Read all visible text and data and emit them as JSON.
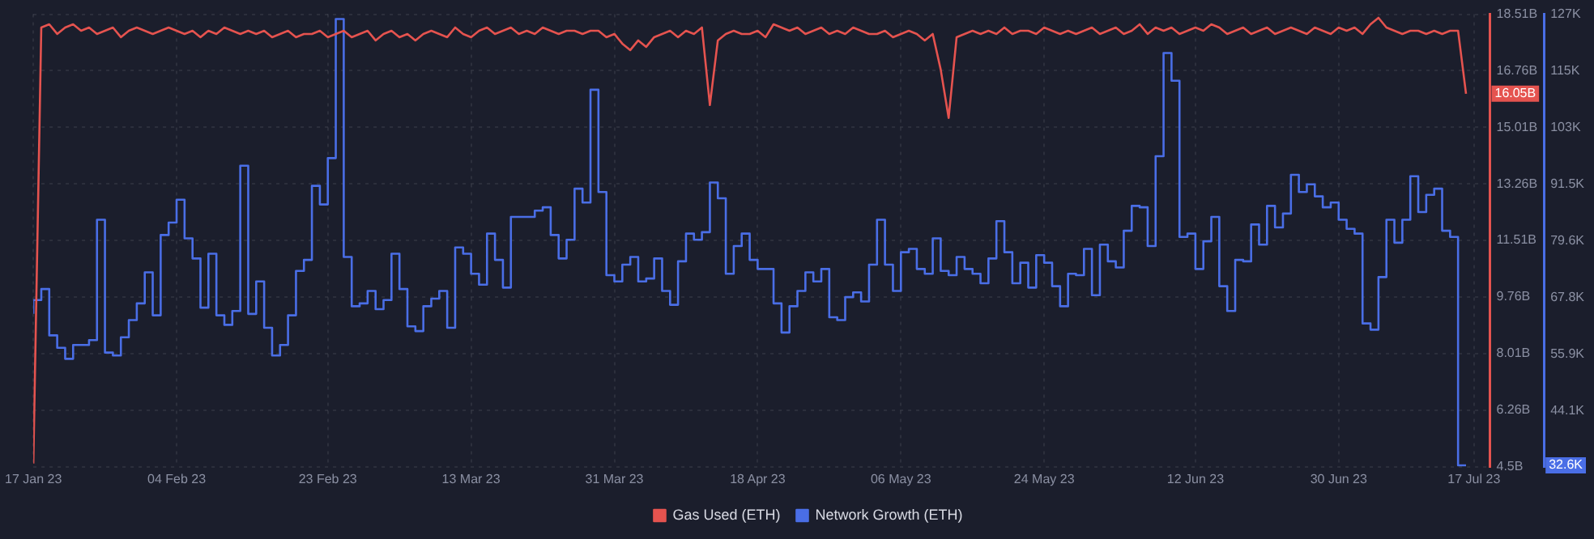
{
  "chart_data": {
    "type": "line",
    "x": [
      "2023-01-17",
      "2023-01-18",
      "2023-01-19",
      "2023-01-20",
      "2023-01-21",
      "2023-01-22",
      "2023-01-23",
      "2023-01-24",
      "2023-01-25",
      "2023-01-26",
      "2023-01-27",
      "2023-01-28",
      "2023-01-29",
      "2023-01-30",
      "2023-01-31",
      "2023-02-01",
      "2023-02-02",
      "2023-02-03",
      "2023-02-04",
      "2023-02-05",
      "2023-02-06",
      "2023-02-07",
      "2023-02-08",
      "2023-02-09",
      "2023-02-10",
      "2023-02-11",
      "2023-02-12",
      "2023-02-13",
      "2023-02-14",
      "2023-02-15",
      "2023-02-16",
      "2023-02-17",
      "2023-02-18",
      "2023-02-19",
      "2023-02-20",
      "2023-02-21",
      "2023-02-22",
      "2023-02-23",
      "2023-02-24",
      "2023-02-25",
      "2023-02-26",
      "2023-02-27",
      "2023-02-28",
      "2023-03-01",
      "2023-03-02",
      "2023-03-03",
      "2023-03-04",
      "2023-03-05",
      "2023-03-06",
      "2023-03-07",
      "2023-03-08",
      "2023-03-09",
      "2023-03-10",
      "2023-03-11",
      "2023-03-12",
      "2023-03-13",
      "2023-03-14",
      "2023-03-15",
      "2023-03-16",
      "2023-03-17",
      "2023-03-18",
      "2023-03-19",
      "2023-03-20",
      "2023-03-21",
      "2023-03-22",
      "2023-03-23",
      "2023-03-24",
      "2023-03-25",
      "2023-03-26",
      "2023-03-27",
      "2023-03-28",
      "2023-03-29",
      "2023-03-30",
      "2023-03-31",
      "2023-04-01",
      "2023-04-02",
      "2023-04-03",
      "2023-04-04",
      "2023-04-05",
      "2023-04-06",
      "2023-04-07",
      "2023-04-08",
      "2023-04-09",
      "2023-04-10",
      "2023-04-11",
      "2023-04-12",
      "2023-04-13",
      "2023-04-14",
      "2023-04-15",
      "2023-04-16",
      "2023-04-17",
      "2023-04-18",
      "2023-04-19",
      "2023-04-20",
      "2023-04-21",
      "2023-04-22",
      "2023-04-23",
      "2023-04-24",
      "2023-04-25",
      "2023-04-26",
      "2023-04-27",
      "2023-04-28",
      "2023-04-29",
      "2023-04-30",
      "2023-05-01",
      "2023-05-02",
      "2023-05-03",
      "2023-05-04",
      "2023-05-05",
      "2023-05-06",
      "2023-05-07",
      "2023-05-08",
      "2023-05-09",
      "2023-05-10",
      "2023-05-11",
      "2023-05-12",
      "2023-05-13",
      "2023-05-14",
      "2023-05-15",
      "2023-05-16",
      "2023-05-17",
      "2023-05-18",
      "2023-05-19",
      "2023-05-20",
      "2023-05-21",
      "2023-05-22",
      "2023-05-23",
      "2023-05-24",
      "2023-05-25",
      "2023-05-26",
      "2023-05-27",
      "2023-05-28",
      "2023-05-29",
      "2023-05-30",
      "2023-05-31",
      "2023-06-01",
      "2023-06-02",
      "2023-06-03",
      "2023-06-04",
      "2023-06-05",
      "2023-06-06",
      "2023-06-07",
      "2023-06-08",
      "2023-06-09",
      "2023-06-10",
      "2023-06-11",
      "2023-06-12",
      "2023-06-13",
      "2023-06-14",
      "2023-06-15",
      "2023-06-16",
      "2023-06-17",
      "2023-06-18",
      "2023-06-19",
      "2023-06-20",
      "2023-06-21",
      "2023-06-22",
      "2023-06-23",
      "2023-06-24",
      "2023-06-25",
      "2023-06-26",
      "2023-06-27",
      "2023-06-28",
      "2023-06-29",
      "2023-06-30",
      "2023-07-01",
      "2023-07-02",
      "2023-07-03",
      "2023-07-04",
      "2023-07-05",
      "2023-07-06",
      "2023-07-07",
      "2023-07-08",
      "2023-07-09",
      "2023-07-10",
      "2023-07-11",
      "2023-07-12",
      "2023-07-13",
      "2023-07-14",
      "2023-07-15",
      "2023-07-16"
    ],
    "series": [
      {
        "name": "Gas Used (ETH)",
        "color": "#e5534f",
        "axis": "y",
        "values": [
          4.6,
          18.1,
          18.2,
          17.9,
          18.1,
          18.2,
          18.0,
          18.1,
          17.9,
          18.0,
          18.1,
          17.8,
          18.0,
          18.1,
          18.0,
          17.9,
          18.0,
          18.1,
          18.0,
          17.9,
          18.0,
          17.8,
          18.0,
          17.9,
          18.1,
          18.0,
          17.9,
          18.0,
          17.9,
          18.0,
          17.8,
          17.9,
          18.0,
          17.8,
          17.9,
          17.9,
          18.0,
          17.8,
          17.9,
          18.0,
          17.8,
          17.9,
          18.0,
          17.7,
          17.9,
          18.0,
          17.8,
          17.9,
          17.7,
          17.9,
          18.0,
          17.9,
          17.8,
          18.1,
          17.9,
          17.8,
          18.0,
          18.1,
          17.9,
          18.0,
          18.1,
          17.9,
          18.0,
          17.9,
          18.1,
          18.0,
          17.9,
          18.0,
          18.0,
          17.9,
          18.0,
          18.0,
          17.8,
          17.9,
          17.6,
          17.4,
          17.7,
          17.5,
          17.8,
          17.9,
          18.0,
          17.8,
          18.0,
          17.9,
          18.1,
          15.7,
          17.7,
          17.9,
          18.0,
          17.9,
          17.9,
          18.0,
          17.8,
          18.2,
          18.1,
          18.0,
          18.1,
          17.9,
          18.0,
          18.1,
          17.9,
          18.0,
          17.9,
          18.1,
          18.0,
          17.9,
          17.9,
          18.0,
          17.8,
          17.9,
          18.0,
          17.9,
          17.7,
          17.9,
          16.8,
          15.3,
          17.8,
          17.9,
          18.0,
          17.9,
          18.0,
          17.9,
          18.1,
          17.9,
          18.0,
          18.0,
          17.9,
          18.1,
          18.0,
          17.9,
          18.0,
          17.9,
          18.0,
          18.1,
          17.9,
          18.0,
          18.1,
          17.9,
          18.0,
          18.2,
          17.9,
          18.1,
          18.0,
          18.1,
          17.9,
          18.0,
          18.1,
          18.0,
          18.2,
          18.1,
          17.9,
          18.0,
          18.1,
          17.9,
          18.0,
          18.1,
          17.9,
          18.0,
          18.1,
          18.0,
          17.9,
          18.1,
          18.0,
          17.9,
          18.1,
          18.0,
          18.1,
          17.9,
          18.2,
          18.4,
          18.1,
          18.0,
          17.9,
          18.0,
          18.0,
          17.9,
          18.0,
          17.9,
          18.0,
          18.0,
          16.05
        ]
      },
      {
        "name": "Network Growth (ETH)",
        "color": "#4a6ee6",
        "axis": "y2",
        "type": "step",
        "values": [
          64.3,
          67.2,
          69.5,
          59.8,
          57.2,
          54.9,
          57.8,
          57.8,
          58.8,
          84.0,
          56.2,
          55.6,
          59.4,
          63.0,
          66.5,
          73.0,
          64.0,
          80.8,
          83.4,
          88.2,
          80.1,
          75.9,
          65.6,
          76.9,
          64.0,
          62.0,
          64.9,
          95.3,
          64.3,
          71.1,
          61.4,
          55.6,
          57.8,
          64.0,
          73.3,
          75.6,
          91.1,
          87.2,
          96.9,
          126.0,
          76.2,
          65.9,
          66.5,
          69.1,
          65.3,
          67.2,
          76.9,
          69.5,
          61.7,
          60.7,
          65.9,
          67.5,
          69.1,
          61.4,
          78.2,
          76.9,
          72.7,
          70.4,
          81.1,
          75.6,
          69.8,
          84.6,
          84.6,
          84.6,
          85.9,
          86.6,
          80.8,
          75.9,
          79.8,
          90.5,
          87.6,
          111.2,
          89.8,
          72.4,
          71.1,
          74.6,
          76.2,
          71.1,
          71.7,
          75.9,
          69.1,
          66.2,
          75.3,
          81.1,
          79.8,
          81.4,
          91.8,
          88.5,
          72.7,
          78.5,
          81.1,
          75.6,
          73.7,
          73.7,
          66.5,
          60.4,
          65.9,
          69.1,
          73.0,
          71.1,
          73.7,
          63.6,
          63.0,
          67.8,
          68.8,
          66.9,
          74.6,
          84.0,
          74.6,
          69.1,
          77.2,
          77.9,
          73.7,
          72.7,
          80.1,
          73.3,
          72.4,
          76.2,
          73.7,
          72.7,
          70.7,
          75.9,
          83.7,
          77.2,
          70.7,
          75.0,
          69.8,
          76.6,
          75.0,
          70.1,
          65.9,
          72.7,
          72.4,
          77.9,
          68.2,
          78.8,
          75.3,
          74.0,
          81.7,
          86.9,
          86.6,
          78.5,
          97.3,
          118.9,
          113.1,
          80.4,
          81.1,
          73.7,
          79.5,
          84.6,
          70.1,
          64.9,
          75.6,
          75.3,
          83.0,
          78.8,
          86.9,
          82.4,
          85.3,
          93.4,
          89.8,
          91.4,
          88.9,
          86.6,
          87.6,
          84.0,
          82.1,
          81.1,
          62.3,
          61.0,
          72.0,
          84.0,
          79.2,
          84.0,
          93.1,
          85.6,
          89.2,
          90.5,
          81.7,
          80.4,
          32.6
        ]
      }
    ],
    "xlim": [
      "2023-01-17",
      "2023-07-19"
    ],
    "xticks": [
      {
        "value": "2023-01-17",
        "label": "17 Jan 23"
      },
      {
        "value": "2023-02-04",
        "label": "04 Feb 23"
      },
      {
        "value": "2023-02-23",
        "label": "23 Feb 23"
      },
      {
        "value": "2023-03-13",
        "label": "13 Mar 23"
      },
      {
        "value": "2023-03-31",
        "label": "31 Mar 23"
      },
      {
        "value": "2023-04-18",
        "label": "18 Apr 23"
      },
      {
        "value": "2023-05-06",
        "label": "06 May 23"
      },
      {
        "value": "2023-05-24",
        "label": "24 May 23"
      },
      {
        "value": "2023-06-12",
        "label": "12 Jun 23"
      },
      {
        "value": "2023-06-30",
        "label": "30 Jun 23"
      },
      {
        "value": "2023-07-17",
        "label": "17 Jul 23"
      }
    ],
    "ylim": [
      4.5,
      18.51
    ],
    "yticks": [
      {
        "value": 4.5,
        "label": "4.5B"
      },
      {
        "value": 6.26,
        "label": "6.26B"
      },
      {
        "value": 8.01,
        "label": "8.01B"
      },
      {
        "value": 9.76,
        "label": "9.76B"
      },
      {
        "value": 11.51,
        "label": "11.51B"
      },
      {
        "value": 13.26,
        "label": "13.26B"
      },
      {
        "value": 15.01,
        "label": "15.01B"
      },
      {
        "value": 16.76,
        "label": "16.76B"
      },
      {
        "value": 18.51,
        "label": "18.51B"
      }
    ],
    "y2lim": [
      32.3,
      127
    ],
    "y2ticks": [
      {
        "value": 44.1,
        "label": "44.1K"
      },
      {
        "value": 55.9,
        "label": "55.9K"
      },
      {
        "value": 67.8,
        "label": "67.8K"
      },
      {
        "value": 79.6,
        "label": "79.6K"
      },
      {
        "value": 91.5,
        "label": "91.5K"
      },
      {
        "value": 103.3,
        "label": "103K"
      },
      {
        "value": 115.2,
        "label": "115K"
      },
      {
        "value": 127,
        "label": "127K"
      }
    ],
    "annotations": [
      "16.05B",
      "32.6K"
    ],
    "grid": true,
    "legend": "bottom"
  }
}
